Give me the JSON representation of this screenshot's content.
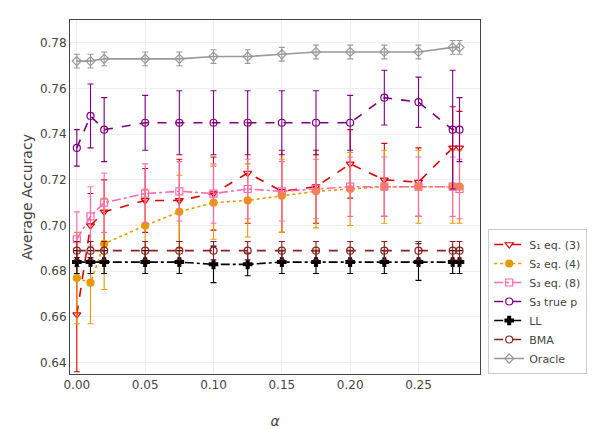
{
  "chart_data": {
    "type": "line",
    "x_label": "α",
    "y_label": "Average Accuracy",
    "x": [
      0.0,
      0.01,
      0.02,
      0.05,
      0.075,
      0.1,
      0.125,
      0.15,
      0.175,
      0.2,
      0.225,
      0.25,
      0.275,
      0.28
    ],
    "series": [
      {
        "name": "S₁ eq. (3)",
        "color": "#dd0000",
        "marker": "triangle-down-open",
        "line_style": "dashed",
        "values": [
          0.661,
          0.7,
          0.706,
          0.711,
          0.711,
          0.714,
          0.723,
          0.715,
          0.717,
          0.727,
          0.72,
          0.719,
          0.734,
          0.734
        ],
        "yerr": [
          0.025,
          0.014,
          0.014,
          0.014,
          0.018,
          0.016,
          0.022,
          0.018,
          0.016,
          0.015,
          0.016,
          0.015,
          0.018,
          0.016
        ]
      },
      {
        "name": "S₂ eq. (4)",
        "color": "#e89900",
        "marker": "circle",
        "line_style": "dotted",
        "values": [
          0.677,
          0.675,
          0.692,
          0.7,
          0.706,
          0.71,
          0.711,
          0.713,
          0.715,
          0.716,
          0.717,
          0.717,
          0.717,
          0.717
        ],
        "yerr": [
          0.02,
          0.018,
          0.02,
          0.016,
          0.016,
          0.016,
          0.016,
          0.016,
          0.016,
          0.016,
          0.016,
          0.016,
          0.016,
          0.016
        ]
      },
      {
        "name": "S₃ eq. (8)",
        "color": "#ff69b4",
        "marker": "square-open",
        "line_style": "dashdot",
        "values": [
          0.694,
          0.704,
          0.71,
          0.714,
          0.715,
          0.714,
          0.716,
          0.715,
          0.716,
          0.717,
          0.717,
          0.717,
          0.717,
          0.716
        ],
        "yerr": [
          0.012,
          0.013,
          0.013,
          0.013,
          0.013,
          0.013,
          0.013,
          0.013,
          0.013,
          0.013,
          0.013,
          0.013,
          0.013,
          0.013
        ]
      },
      {
        "name": "S₃ true p",
        "color": "#800080",
        "marker": "circle-open",
        "line_style": "dashed",
        "values": [
          0.734,
          0.748,
          0.742,
          0.745,
          0.745,
          0.745,
          0.745,
          0.745,
          0.745,
          0.745,
          0.756,
          0.754,
          0.742,
          0.742
        ],
        "yerr": [
          0.008,
          0.014,
          0.014,
          0.012,
          0.014,
          0.014,
          0.014,
          0.014,
          0.014,
          0.012,
          0.012,
          0.011,
          0.026,
          0.014
        ]
      },
      {
        "name": "LL",
        "color": "#000000",
        "marker": "cross",
        "line_style": "dashdot",
        "values": [
          0.684,
          0.684,
          0.684,
          0.684,
          0.684,
          0.683,
          0.683,
          0.684,
          0.684,
          0.684,
          0.684,
          0.684,
          0.684,
          0.684
        ],
        "yerr": [
          0.005,
          0.005,
          0.005,
          0.005,
          0.005,
          0.008,
          0.005,
          0.005,
          0.005,
          0.005,
          0.005,
          0.008,
          0.005,
          0.005
        ]
      },
      {
        "name": "BMA",
        "color": "#8b2222",
        "marker": "circle-open",
        "line_style": "dashed",
        "values": [
          0.689,
          0.689,
          0.689,
          0.689,
          0.689,
          0.689,
          0.689,
          0.689,
          0.689,
          0.689,
          0.689,
          0.689,
          0.689,
          0.689
        ],
        "yerr": [
          0.004,
          0.004,
          0.004,
          0.004,
          0.004,
          0.004,
          0.004,
          0.004,
          0.004,
          0.004,
          0.004,
          0.004,
          0.004,
          0.004
        ]
      },
      {
        "name": "Oracle",
        "color": "#999999",
        "marker": "diamond-open",
        "line_style": "solid",
        "values": [
          0.772,
          0.772,
          0.773,
          0.773,
          0.773,
          0.774,
          0.774,
          0.775,
          0.776,
          0.776,
          0.776,
          0.776,
          0.778,
          0.778
        ],
        "yerr": [
          0.003,
          0.003,
          0.003,
          0.003,
          0.003,
          0.003,
          0.003,
          0.003,
          0.003,
          0.003,
          0.003,
          0.003,
          0.003,
          0.003
        ]
      }
    ],
    "xlim": [
      -0.005,
      0.295
    ],
    "xticks": [
      {
        "value": 0,
        "label": "0.00"
      },
      0.05,
      {
        "value": 0.1,
        "label": "0.10"
      },
      0.15,
      {
        "value": 0.2,
        "label": "0.20"
      },
      0.25
    ],
    "ylim": [
      0.635,
      0.79
    ],
    "yticks": [
      0.64,
      0.66,
      0.68,
      {
        "value": 0.7,
        "label": "0.70"
      },
      0.72,
      0.74,
      0.76,
      0.78
    ],
    "grid": true,
    "legend": "lower right"
  }
}
